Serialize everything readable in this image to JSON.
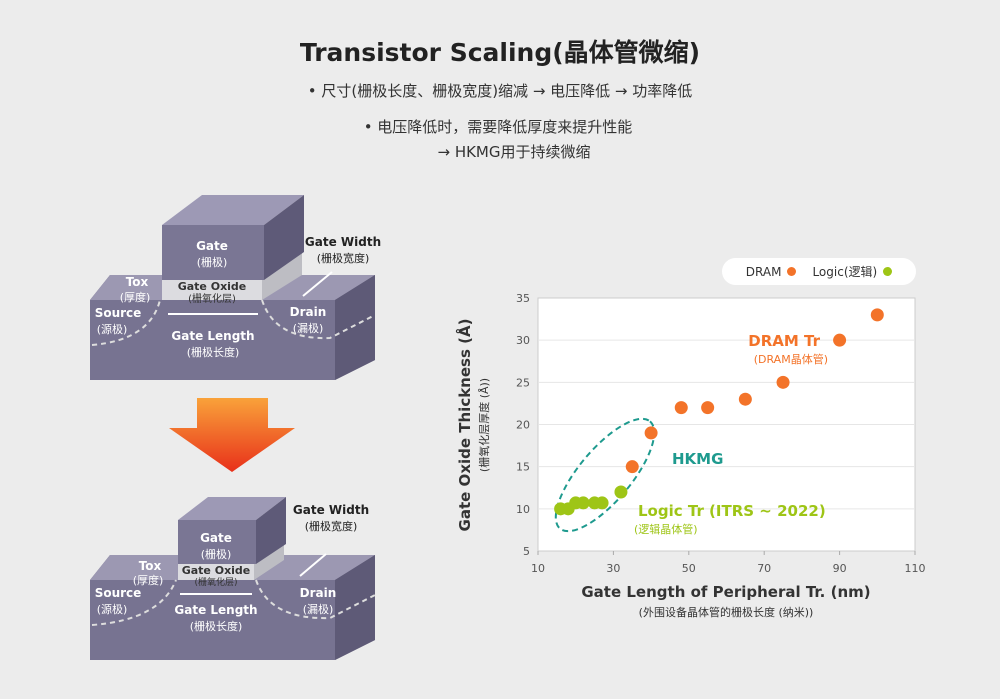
{
  "title": "Transistor Scaling(晶体管微缩)",
  "bullets": [
    "• 尺寸(栅极长度、栅极宽度)缩减 → 电压降低 → 功率降低",
    "• 电压降低时，需要降低厚度来提升性能",
    "→ HKMG用于持续微缩"
  ],
  "diagram": {
    "gate": "Gate",
    "gate_cn": "(栅极)",
    "gate_width": "Gate Width",
    "gate_width_cn": "(栅极宽度)",
    "tox": "Tox",
    "tox_cn": "(厚度)",
    "oxide": "Gate Oxide",
    "oxide_cn": "(栅氧化层)",
    "source": "Source",
    "source_cn": "(源极)",
    "drain": "Drain",
    "drain_cn": "(漏极)",
    "gate_length": "Gate Length",
    "gate_length_cn": "(栅极长度)"
  },
  "colors": {
    "dram": "#f37329",
    "logic": "#9ec516",
    "hkmg": "#1e9a8e",
    "arrow": "#f04d12"
  },
  "chart_data": {
    "type": "scatter",
    "xlabel": "Gate Length of Peripheral Tr. (nm)",
    "xlabel_cn": "(外围设备晶体管的栅极长度 (纳米))",
    "ylabel": "Gate Oxide Thickness (Å)",
    "ylabel_cn": "(栅氧化层厚度 (Å))",
    "xlim": [
      10,
      110
    ],
    "ylim": [
      5,
      35
    ],
    "xticks": [
      "10",
      "30",
      "50",
      "70",
      "90",
      "110"
    ],
    "yticks": [
      "5",
      "10",
      "15",
      "20",
      "25",
      "30",
      "35"
    ],
    "grid": "horizontal",
    "legend_position": "top-right",
    "series": [
      {
        "name": "DRAM",
        "label": "DRAM Tr",
        "label_cn": "(DRAM晶体管)",
        "x": [
          35,
          40,
          48,
          55,
          65,
          75,
          90,
          100
        ],
        "y": [
          15,
          19,
          22,
          22,
          23,
          25,
          30,
          33
        ]
      },
      {
        "name": "Logic(逻辑)",
        "label": "Logic Tr (ITRS ~ 2022)",
        "label_cn": "(逻辑晶体管)",
        "x": [
          16,
          18,
          20,
          22,
          25,
          27,
          32
        ],
        "y": [
          10,
          10,
          10.7,
          10.7,
          10.7,
          10.7,
          12
        ]
      }
    ],
    "annotation": "HKMG"
  }
}
